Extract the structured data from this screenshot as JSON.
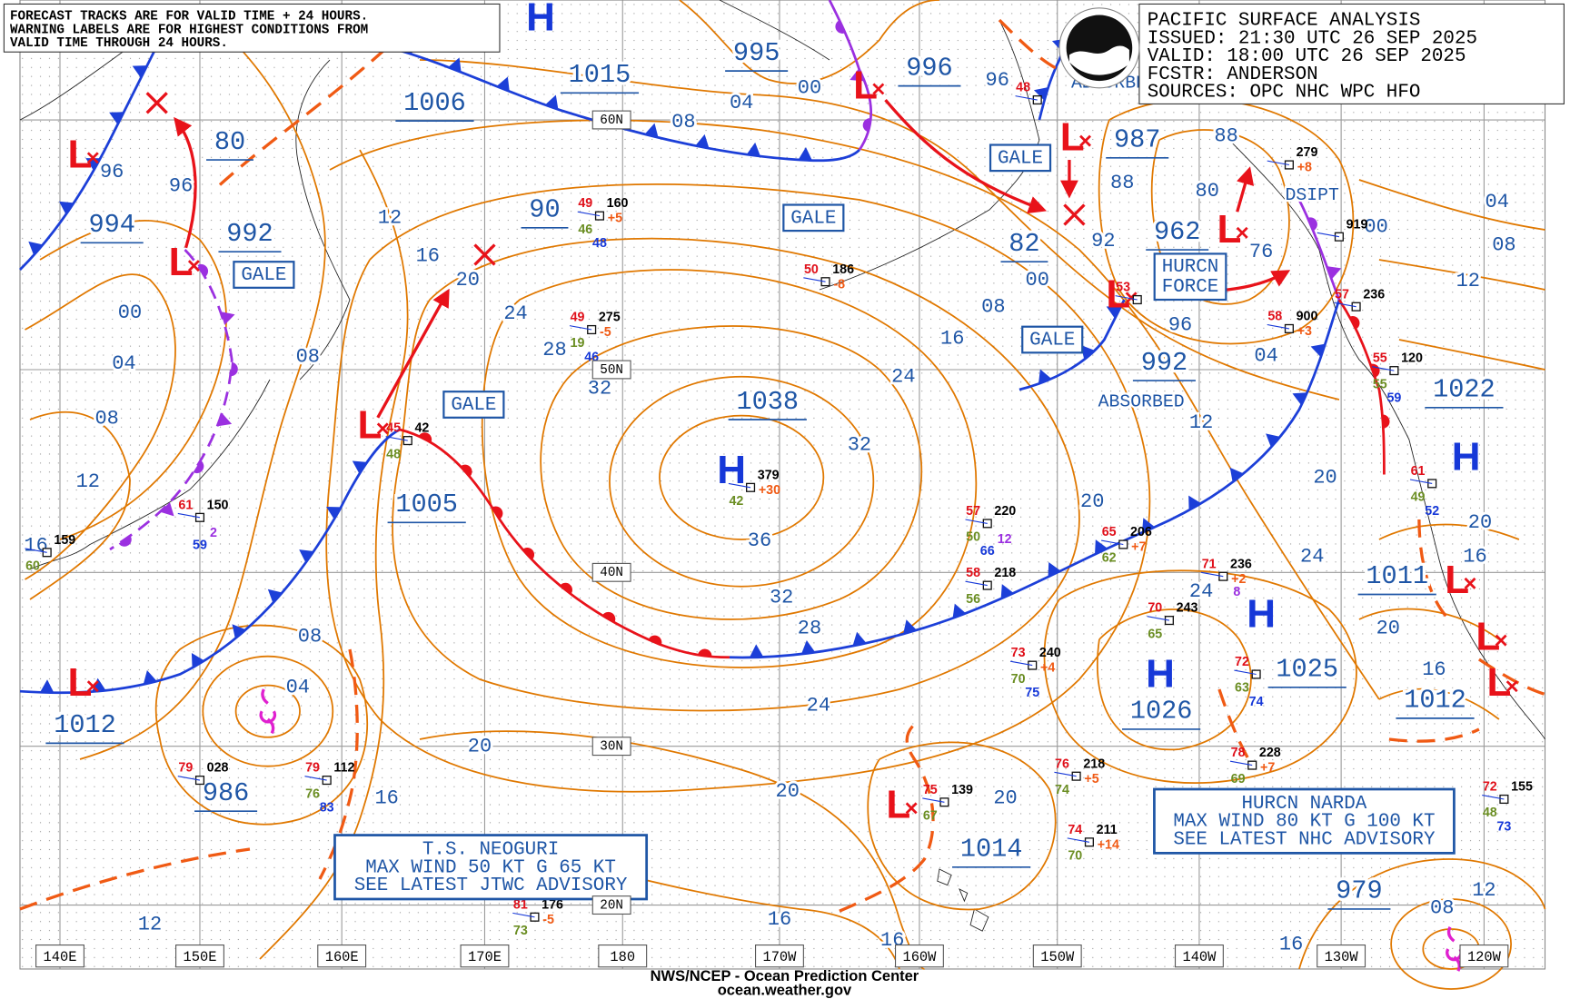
{
  "header": {
    "title": "PACIFIC SURFACE ANALYSIS",
    "issued": "ISSUED: 21:30 UTC 26 SEP 2025",
    "valid": "VALID:  18:00 UTC 26 SEP 2025",
    "forecaster": "FCSTR:  ANDERSON",
    "sources": "SOURCES:  OPC NHC WPC HFO"
  },
  "note": [
    "FORECAST TRACKS ARE FOR VALID TIME + 24 HOURS.",
    "WARNING LABELS ARE FOR HIGHEST CONDITIONS FROM",
    "VALID TIME THROUGH 24 HOURS."
  ],
  "lon_labels": [
    "140E",
    "150E",
    "160E",
    "170E",
    "180",
    "170W",
    "160W",
    "150W",
    "140W",
    "130W",
    "120W"
  ],
  "lat_labels": [
    "60N",
    "50N",
    "40N",
    "30N",
    "20N"
  ],
  "central_pressures": [
    "1015",
    "995",
    "996",
    "1006",
    "987",
    "80",
    "994",
    "992",
    "90",
    "962",
    "82",
    "992",
    "1038",
    "1005",
    "1022",
    "1011",
    "1025",
    "1026",
    "1012",
    "1012",
    "986",
    "1014",
    "979"
  ],
  "isobar_labels": [
    "96",
    "96",
    "00",
    "04",
    "08",
    "12",
    "16",
    "12",
    "16",
    "20",
    "24",
    "28",
    "32",
    "08",
    "04",
    "00",
    "08",
    "96",
    "88",
    "88",
    "80",
    "92",
    "00",
    "08",
    "16",
    "24",
    "32",
    "36",
    "32",
    "28",
    "24",
    "20",
    "16",
    "16",
    "20",
    "96",
    "04",
    "12",
    "20",
    "20",
    "24",
    "24",
    "76",
    "00",
    "04",
    "08",
    "12",
    "20",
    "16",
    "20",
    "16",
    "08",
    "04",
    "20",
    "16",
    "12",
    "16",
    "12",
    "08"
  ],
  "pressure_systems": [
    "H",
    "H",
    "H",
    "H",
    "H",
    "L",
    "L",
    "L",
    "L",
    "L",
    "L",
    "L",
    "L",
    "L",
    "L",
    "L",
    "L"
  ],
  "warnings": [
    {
      "lines": [
        "GALE"
      ]
    },
    {
      "lines": [
        "GALE"
      ]
    },
    {
      "lines": [
        "GALE"
      ]
    },
    {
      "lines": [
        "GALE"
      ]
    },
    {
      "lines": [
        "GALE"
      ]
    },
    {
      "lines": [
        "HURCN",
        "FORCE"
      ]
    }
  ],
  "remarks": [
    "DSIPT",
    "ABSORBED",
    "ABSORBED"
  ],
  "advisories": [
    {
      "lines": [
        "T.S. NEOGURI",
        "MAX WIND 50 KT G 65 KT",
        "SEE LATEST JTWC ADVISORY"
      ]
    },
    {
      "lines": [
        "HURCN NARDA",
        "MAX WIND 80 KT G 100 KT",
        "SEE LATEST NHC ADVISORY"
      ]
    }
  ],
  "stations": [
    {
      "temperature": "49",
      "pressure": "160",
      "dewpoint": "46",
      "tendency": "+5",
      "visibility": "48"
    },
    {
      "temperature": "50",
      "pressure": "186",
      "tendency": "-8"
    },
    {
      "temperature": "49",
      "pressure": "275",
      "dewpoint": "19",
      "tendency": "-5",
      "visibility": "46"
    },
    {
      "temperature": "45",
      "pressure": "42",
      "dewpoint": "48"
    },
    {
      "temperature": "61",
      "pressure": "150",
      "visibility": "59",
      "other": "2"
    },
    {
      "pressure": "159",
      "dewpoint": "60"
    },
    {
      "pressure": "379",
      "dewpoint": "42",
      "tendency": "+30"
    },
    {
      "temperature": "57",
      "pressure": "220",
      "dewpoint": "50",
      "visibility": "66",
      "other": "12"
    },
    {
      "temperature": "58",
      "pressure": "218",
      "dewpoint": "56"
    },
    {
      "temperature": "65",
      "pressure": "206",
      "dewpoint": "62",
      "tendency": "+7"
    },
    {
      "temperature": "71",
      "pressure": "236",
      "tendency": "+2",
      "other": "8"
    },
    {
      "temperature": "70",
      "pressure": "243",
      "dewpoint": "65"
    },
    {
      "temperature": "73",
      "pressure": "240",
      "dewpoint": "70",
      "tendency": "+4",
      "visibility": "75"
    },
    {
      "temperature": "72",
      "dewpoint": "63",
      "visibility": "74"
    },
    {
      "temperature": "78",
      "pressure": "228",
      "dewpoint": "69",
      "tendency": "+7"
    },
    {
      "temperature": "76",
      "pressure": "218",
      "dewpoint": "74",
      "tendency": "+5"
    },
    {
      "temperature": "74",
      "pressure": "211",
      "dewpoint": "70",
      "tendency": "+14"
    },
    {
      "temperature": "75",
      "pressure": "139",
      "dewpoint": "67"
    },
    {
      "temperature": "79",
      "pressure": "112",
      "dewpoint": "76",
      "visibility": "83"
    },
    {
      "temperature": "79",
      "pressure": "028"
    },
    {
      "temperature": "58",
      "pressure": "900",
      "tendency": "+3"
    },
    {
      "temperature": "72",
      "pressure": "155",
      "dewpoint": "48",
      "visibility": "73"
    },
    {
      "pressure": "279",
      "tendency": "+8"
    },
    {
      "pressure": "919"
    },
    {
      "temperature": "81",
      "pressure": "176",
      "dewpoint": "73",
      "tendency": "-5"
    },
    {
      "temperature": "55",
      "pressure": "120",
      "dewpoint": "55",
      "visibility": "59"
    },
    {
      "temperature": "57",
      "pressure": "236"
    },
    {
      "temperature": "61",
      "dewpoint": "49",
      "visibility": "52"
    },
    {
      "temperature": "48"
    },
    {
      "temperature": "53"
    }
  ],
  "footer": [
    "NWS/NCEP - Ocean Prediction Center",
    "ocean.weather.gov"
  ]
}
